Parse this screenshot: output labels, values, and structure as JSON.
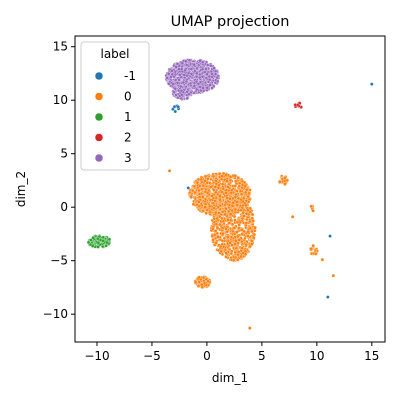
{
  "chart_data": {
    "type": "scatter",
    "title": "UMAP projection",
    "xlabel": "dim_1",
    "ylabel": "dim_2",
    "xlim": [
      -12,
      16.2
    ],
    "ylim": [
      -12.6,
      16
    ],
    "xticks": [
      -10,
      -5,
      0,
      5,
      10,
      15
    ],
    "yticks": [
      -10,
      -5,
      0,
      5,
      10,
      15
    ],
    "xtick_labels": [
      "−10",
      "−5",
      "0",
      "5",
      "10",
      "15"
    ],
    "ytick_labels": [
      "−10",
      "−5",
      "0",
      "5",
      "10",
      "15"
    ],
    "grid": false,
    "legend": {
      "title": "label",
      "placement": "top-left",
      "entries": [
        "-1",
        "0",
        "1",
        "2",
        "3"
      ]
    },
    "series": [
      {
        "name": "-1",
        "color": "#1f77b4",
        "clusters": [
          {
            "cx": -2.8,
            "cy": 9.2,
            "rx": 0.35,
            "ry": 0.35,
            "n": 8
          },
          {
            "cx": -1.7,
            "cy": 1.8,
            "rx": 0.1,
            "ry": 0.1,
            "n": 1
          },
          {
            "cx": 11.2,
            "cy": -2.7,
            "rx": 0.05,
            "ry": 0.05,
            "n": 1
          },
          {
            "cx": 11.0,
            "cy": -8.4,
            "rx": 0.05,
            "ry": 0.05,
            "n": 1
          },
          {
            "cx": 15.0,
            "cy": 11.5,
            "rx": 0.05,
            "ry": 0.05,
            "n": 1
          }
        ]
      },
      {
        "name": "0",
        "color": "#ff7f0e",
        "clusters": [
          {
            "cx": 1.2,
            "cy": 1.2,
            "rx": 2.8,
            "ry": 2.0,
            "n": 700
          },
          {
            "cx": 2.4,
            "cy": -2.0,
            "rx": 2.0,
            "ry": 3.0,
            "n": 600
          },
          {
            "cx": 0.2,
            "cy": 0.6,
            "rx": 1.3,
            "ry": 0.9,
            "n": 180
          },
          {
            "cx": -0.4,
            "cy": -7.0,
            "rx": 0.7,
            "ry": 0.5,
            "n": 90
          },
          {
            "cx": 7.0,
            "cy": 2.5,
            "rx": 0.4,
            "ry": 0.5,
            "n": 25
          },
          {
            "cx": 9.7,
            "cy": -4.0,
            "rx": 0.4,
            "ry": 0.5,
            "n": 18
          },
          {
            "cx": 9.6,
            "cy": -0.1,
            "rx": 0.15,
            "ry": 0.3,
            "n": 5
          },
          {
            "cx": 7.8,
            "cy": -0.9,
            "rx": 0.05,
            "ry": 0.05,
            "n": 1
          },
          {
            "cx": 10.5,
            "cy": -4.9,
            "rx": 0.05,
            "ry": 0.05,
            "n": 1
          },
          {
            "cx": 11.5,
            "cy": -6.4,
            "rx": 0.05,
            "ry": 0.05,
            "n": 1
          },
          {
            "cx": 3.9,
            "cy": -11.3,
            "rx": 0.05,
            "ry": 0.05,
            "n": 1
          },
          {
            "cx": -3.4,
            "cy": 3.4,
            "rx": 0.05,
            "ry": 0.05,
            "n": 1
          }
        ]
      },
      {
        "name": "1",
        "color": "#2ca02c",
        "clusters": [
          {
            "cx": -9.8,
            "cy": -3.2,
            "rx": 1.0,
            "ry": 0.55,
            "n": 130
          }
        ]
      },
      {
        "name": "2",
        "color": "#d62728",
        "clusters": [
          {
            "cx": 8.3,
            "cy": 9.5,
            "rx": 0.35,
            "ry": 0.25,
            "n": 10
          }
        ]
      },
      {
        "name": "3",
        "color": "#9467bd",
        "clusters": [
          {
            "cx": -1.3,
            "cy": 12.2,
            "rx": 2.4,
            "ry": 1.6,
            "n": 650
          },
          {
            "cx": -2.2,
            "cy": 10.7,
            "rx": 0.9,
            "ry": 0.6,
            "n": 80
          }
        ]
      }
    ]
  }
}
